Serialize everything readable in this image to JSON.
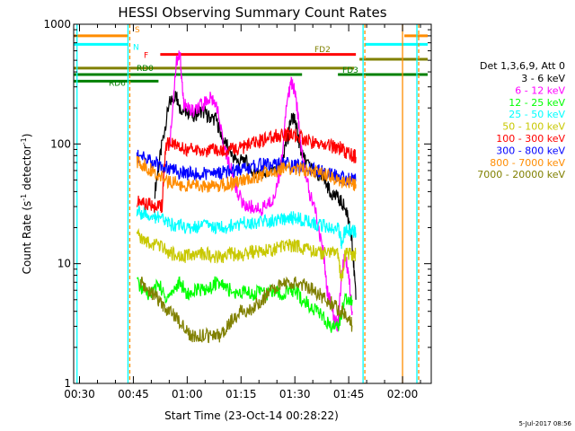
{
  "chart_data": {
    "type": "line",
    "title": "HESSI Observing Summary Count Rates",
    "xlabel": "Start Time (23-Oct-14 00:28:22)",
    "ylabel_main": "Count Rate (s",
    "ylabel_sup1": "-1",
    "ylabel_mid": " detector",
    "ylabel_sup2": "-1",
    "ylabel_end": ")",
    "yscale": "log",
    "xlim": [
      28.37,
      128
    ],
    "ylim": [
      1,
      1000
    ],
    "x_unit": "minutes after 00:00 UT",
    "x_ticks": [
      {
        "x": 30,
        "label": "00:30"
      },
      {
        "x": 45,
        "label": "00:45"
      },
      {
        "x": 60,
        "label": "01:00"
      },
      {
        "x": 75,
        "label": "01:15"
      },
      {
        "x": 90,
        "label": "01:30"
      },
      {
        "x": 105,
        "label": "01:45"
      },
      {
        "x": 120,
        "label": "02:00"
      }
    ],
    "y_ticks": [
      {
        "y": 1,
        "label": "1"
      },
      {
        "y": 10,
        "label": "10"
      },
      {
        "y": 100,
        "label": "100"
      },
      {
        "y": 1000,
        "label": "1000"
      }
    ],
    "legend_title": "Det 1,3,6,9, Att 0",
    "legend_placement": "right",
    "series": [
      {
        "name": "3 - 6 keV",
        "color": "#000000",
        "x": [
          51,
          53,
          55,
          57,
          58,
          60,
          62,
          64,
          66,
          68,
          70,
          72,
          74,
          76,
          78,
          80,
          82,
          84,
          86,
          88,
          89,
          90,
          91,
          92,
          94,
          96,
          98,
          100,
          102,
          104,
          105,
          106,
          107
        ],
        "y": [
          40,
          100,
          220,
          260,
          200,
          185,
          175,
          190,
          170,
          160,
          110,
          85,
          70,
          75,
          60,
          55,
          55,
          58,
          65,
          110,
          170,
          160,
          110,
          80,
          65,
          55,
          50,
          40,
          35,
          30,
          22,
          15,
          5
        ]
      },
      {
        "name": "6 - 12 keV",
        "color": "#ff00ff",
        "x": [
          55,
          57,
          58,
          59,
          60,
          62,
          64,
          66,
          68,
          70,
          72,
          74,
          76,
          78,
          80,
          82,
          84,
          86,
          88,
          89,
          90,
          91,
          92,
          94,
          96,
          98,
          99,
          100,
          101,
          102,
          103,
          104,
          105,
          106
        ],
        "y": [
          90,
          500,
          560,
          220,
          200,
          185,
          210,
          240,
          230,
          100,
          65,
          40,
          30,
          30,
          28,
          30,
          35,
          60,
          250,
          320,
          280,
          160,
          80,
          40,
          25,
          12,
          6,
          5,
          3.5,
          3,
          8,
          12,
          8,
          4
        ]
      },
      {
        "name": "12 - 25 keV",
        "color": "#00ff00",
        "x": [
          46,
          48,
          50,
          52,
          54,
          56,
          58,
          60,
          62,
          64,
          66,
          68,
          70,
          72,
          74,
          76,
          78,
          80,
          82,
          84,
          86,
          88,
          90,
          92,
          94,
          96,
          98,
          100,
          102,
          104,
          106
        ],
        "y": [
          7,
          6,
          5.5,
          7,
          5,
          6,
          7,
          5.5,
          6,
          6,
          6,
          7,
          6.5,
          6,
          5.5,
          6,
          5.5,
          6,
          5.5,
          6,
          5.5,
          6,
          6,
          5,
          4.5,
          4,
          3.5,
          3,
          3,
          5,
          5
        ]
      },
      {
        "name": "25 - 50 keV",
        "color": "#00ffff",
        "x": [
          46,
          48,
          50,
          52,
          54,
          56,
          58,
          60,
          62,
          64,
          66,
          68,
          70,
          72,
          74,
          76,
          78,
          80,
          82,
          84,
          86,
          88,
          90,
          92,
          94,
          96,
          98,
          100,
          102,
          103,
          104,
          106,
          107
        ],
        "y": [
          27,
          26,
          25,
          24,
          22,
          21,
          21,
          20,
          20,
          21,
          21,
          20,
          20,
          21,
          21,
          22,
          22,
          22,
          23,
          23,
          24,
          24,
          24,
          23,
          22,
          21,
          21,
          20,
          20,
          15,
          19,
          19,
          18
        ]
      },
      {
        "name": "50 - 100 keV",
        "color": "#c8c800",
        "x": [
          46,
          48,
          50,
          52,
          54,
          56,
          58,
          60,
          62,
          64,
          66,
          68,
          70,
          72,
          74,
          76,
          78,
          80,
          82,
          84,
          86,
          88,
          90,
          92,
          94,
          96,
          98,
          100,
          102,
          103,
          104,
          106,
          107
        ],
        "y": [
          17,
          16,
          15,
          14,
          13,
          12,
          12,
          11.5,
          11.5,
          12,
          12,
          11.5,
          11.5,
          12,
          12,
          12,
          12.5,
          12.5,
          13,
          13,
          14,
          14,
          14,
          13.5,
          13,
          12.5,
          12,
          12,
          12,
          7,
          12,
          12,
          12
        ]
      },
      {
        "name": "100 - 300 keV",
        "color": "#ff0000",
        "x": [
          46,
          48,
          50,
          52,
          53,
          54,
          56,
          58,
          60,
          62,
          64,
          66,
          68,
          70,
          72,
          74,
          76,
          78,
          80,
          82,
          84,
          86,
          88,
          90,
          92,
          94,
          96,
          98,
          100,
          102,
          103,
          104,
          106,
          107
        ],
        "y": [
          33,
          32,
          31,
          30,
          30,
          100,
          98,
          95,
          90,
          90,
          88,
          87,
          88,
          88,
          90,
          92,
          95,
          100,
          105,
          110,
          115,
          118,
          120,
          118,
          112,
          105,
          100,
          98,
          95,
          95,
          90,
          85,
          80,
          78
        ]
      },
      {
        "name": "300 - 800 keV",
        "color": "#0000ff",
        "x": [
          46,
          48,
          50,
          52,
          54,
          56,
          58,
          60,
          62,
          64,
          66,
          68,
          70,
          72,
          74,
          76,
          78,
          80,
          82,
          84,
          86,
          88,
          90,
          92,
          94,
          96,
          98,
          100,
          102,
          104,
          106,
          107
        ],
        "y": [
          80,
          76,
          72,
          68,
          64,
          60,
          58,
          57,
          56,
          56,
          56,
          57,
          58,
          59,
          60,
          62,
          64,
          66,
          68,
          68,
          68,
          67,
          66,
          64,
          62,
          60,
          58,
          56,
          54,
          52,
          50,
          49
        ]
      },
      {
        "name": "800 - 7000 keV",
        "color": "#ff8c00",
        "x": [
          46,
          48,
          50,
          52,
          54,
          56,
          58,
          60,
          62,
          64,
          66,
          68,
          70,
          72,
          74,
          76,
          78,
          80,
          82,
          84,
          86,
          88,
          90,
          92,
          94,
          96,
          98,
          100,
          102,
          104,
          106,
          107
        ],
        "y": [
          72,
          66,
          60,
          55,
          50,
          48,
          46,
          45,
          45,
          45,
          45,
          45,
          46,
          47,
          48,
          50,
          52,
          54,
          57,
          59,
          61,
          62,
          62,
          61,
          59,
          57,
          55,
          53,
          50,
          48,
          47,
          46
        ]
      },
      {
        "name": "7000 - 20000 keV",
        "color": "#808000",
        "x": [
          47,
          49,
          51,
          53,
          55,
          57,
          59,
          61,
          63,
          65,
          67,
          69,
          71,
          73,
          75,
          77,
          79,
          81,
          83,
          85,
          87,
          89,
          91,
          93,
          95,
          97,
          99,
          101,
          103,
          105,
          106
        ],
        "y": [
          7,
          6,
          5.5,
          4.5,
          4,
          3.5,
          3,
          2.5,
          2.5,
          2.5,
          2.5,
          2.5,
          3,
          3.5,
          4,
          4,
          4.5,
          5,
          6,
          6.5,
          7,
          7,
          7,
          6.5,
          6,
          5.5,
          5,
          4.5,
          4,
          3.5,
          3
        ]
      }
    ],
    "state_bars": [
      {
        "label": "S",
        "color": "#ff8c00",
        "y": 800,
        "segments": [
          [
            28.37,
            43.5
          ],
          [
            120.5,
            127
          ]
        ]
      },
      {
        "label": "N",
        "color": "#00ffff",
        "y": 680,
        "segments": [
          [
            28.37,
            43.5
          ],
          [
            109.5,
            127
          ]
        ]
      },
      {
        "label": "F",
        "color": "#ff0000",
        "y": 560,
        "segments": [
          [
            52.5,
            107
          ]
        ]
      },
      {
        "label": "FD2",
        "color": "#808000",
        "y": 510,
        "segments": [
          [
            108,
            127
          ]
        ]
      },
      {
        "label": "",
        "color": "#808000",
        "y": 430,
        "segments": [
          [
            28.37,
            106.5
          ]
        ]
      },
      {
        "label": "FD3",
        "color": "#008000",
        "y": 380,
        "segments": [
          [
            28.37,
            92
          ],
          [
            102,
            127
          ]
        ]
      },
      {
        "label": "RD0",
        "color": "#008000",
        "y": 380,
        "segments": []
      },
      {
        "label": "RD6",
        "color": "#008000",
        "y": 335,
        "segments": [
          [
            28.37,
            52
          ]
        ]
      }
    ],
    "vertical_markers": [
      {
        "x": 29.3,
        "color": "#00ffff",
        "style": "solid"
      },
      {
        "x": 43.5,
        "color": "#00ffff",
        "style": "solid"
      },
      {
        "x": 44,
        "color": "#ff8c00",
        "style": "dashed"
      },
      {
        "x": 109,
        "color": "#00ffff",
        "style": "solid"
      },
      {
        "x": 109.5,
        "color": "#ff8c00",
        "style": "dashed"
      },
      {
        "x": 120,
        "color": "#ff8c00",
        "style": "solid"
      },
      {
        "x": 124,
        "color": "#00ffff",
        "style": "solid"
      },
      {
        "x": 124.5,
        "color": "#ff8c00",
        "style": "dashed"
      }
    ]
  },
  "footer_timestamp": "5-Jul-2017 08:56"
}
